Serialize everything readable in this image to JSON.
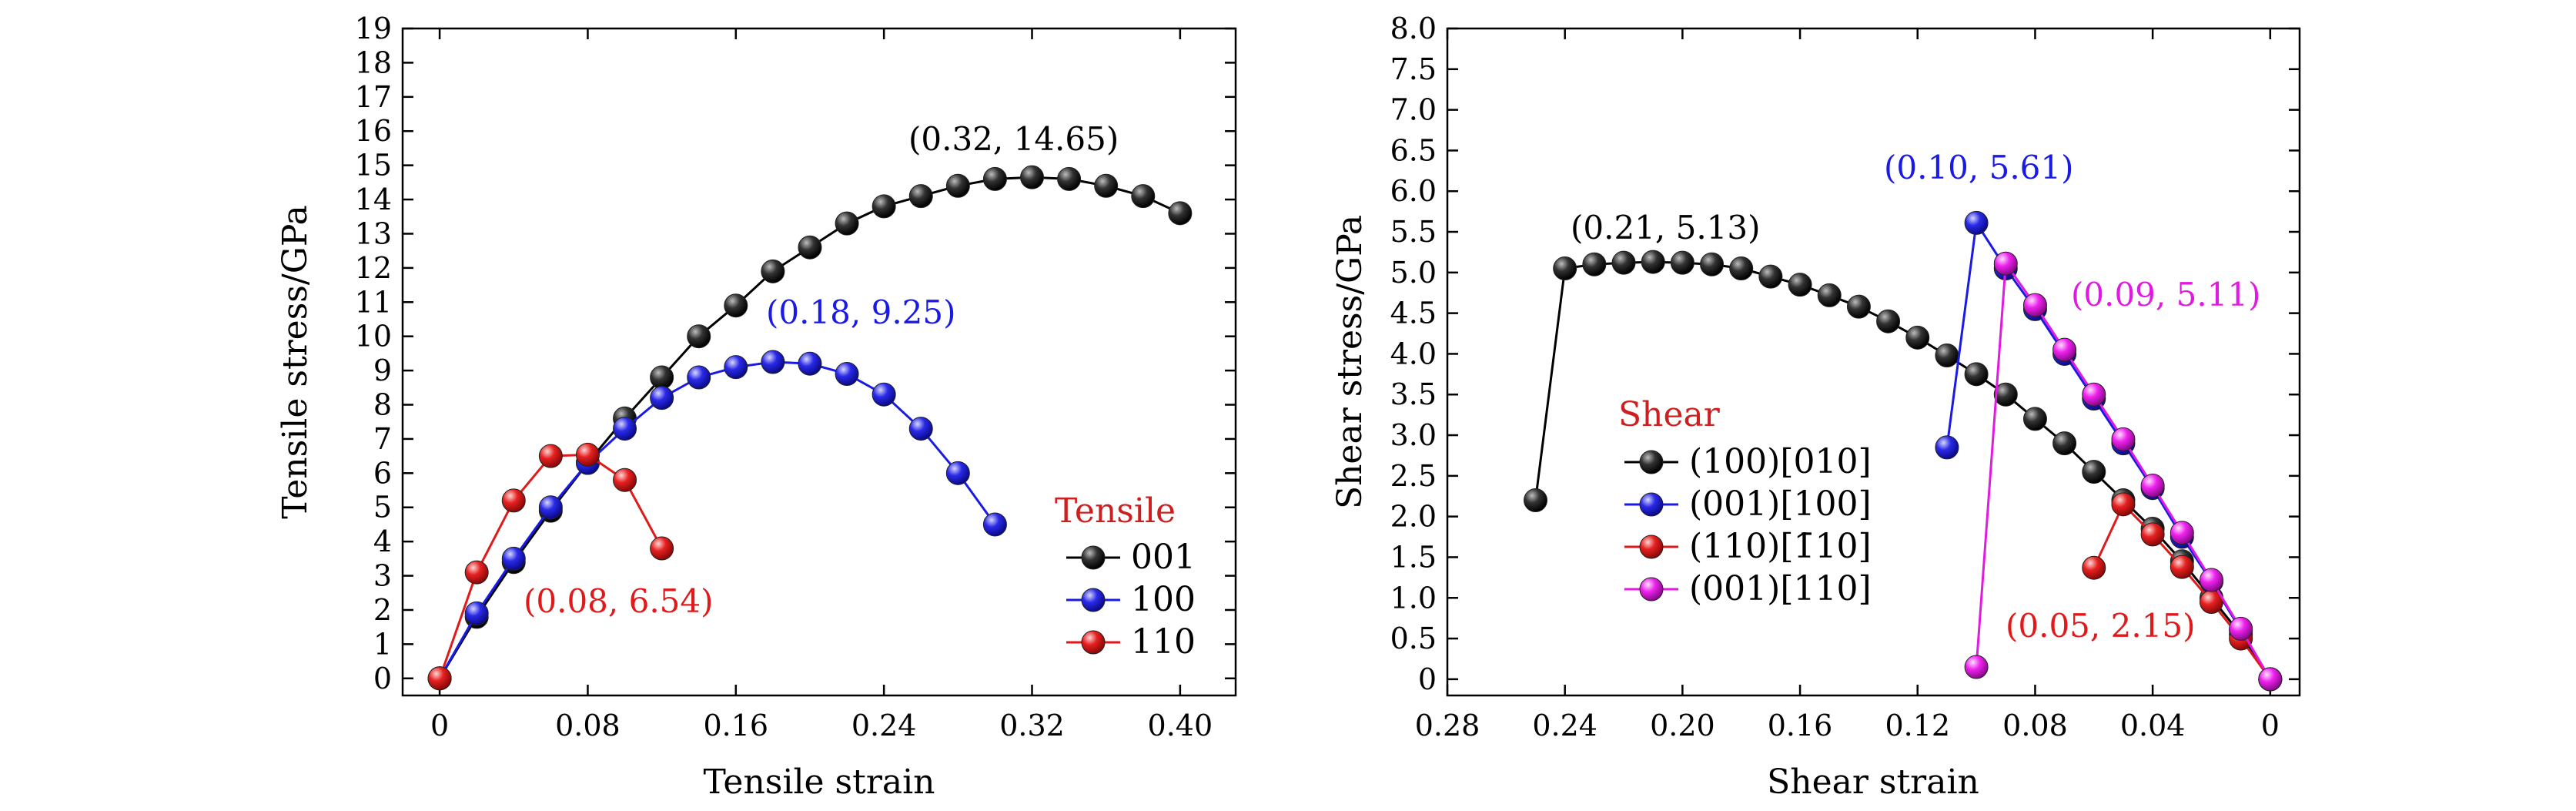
{
  "chart_data": [
    {
      "type": "scatter",
      "style": "line-with-ball-markers",
      "xlabel": "Tensile strain",
      "ylabel": "Tensile stress/GPa",
      "xlim": [
        -0.02,
        0.43
      ],
      "ylim": [
        -0.5,
        19
      ],
      "xticks": [
        0,
        0.08,
        0.16,
        0.24,
        0.32,
        0.4
      ],
      "xtick_labels": [
        "0",
        "0.08",
        "0.16",
        "0.24",
        "0.32",
        "0.40"
      ],
      "yticks": [
        0,
        1,
        2,
        3,
        4,
        5,
        6,
        7,
        8,
        9,
        10,
        11,
        12,
        13,
        14,
        15,
        16,
        17,
        18,
        19
      ],
      "ytick_labels": [
        "0",
        "1",
        "2",
        "3",
        "4",
        "5",
        "6",
        "7",
        "8",
        "9",
        "10",
        "11",
        "12",
        "13",
        "14",
        "15",
        "16",
        "17",
        "18",
        "19"
      ],
      "grid": false,
      "legend_title": "Tensile",
      "legend_title_color": "#cc2020",
      "legend_position": "lower-right",
      "series": [
        {
          "name": "001",
          "color": "#000000",
          "x": [
            0,
            0.02,
            0.04,
            0.06,
            0.08,
            0.1,
            0.12,
            0.14,
            0.16,
            0.18,
            0.2,
            0.22,
            0.24,
            0.26,
            0.28,
            0.3,
            0.32,
            0.34,
            0.36,
            0.38,
            0.4
          ],
          "y": [
            0,
            1.8,
            3.4,
            4.9,
            6.3,
            7.6,
            8.8,
            10.0,
            10.9,
            11.9,
            12.6,
            13.3,
            13.8,
            14.1,
            14.4,
            14.6,
            14.65,
            14.6,
            14.4,
            14.1,
            13.6
          ]
        },
        {
          "name": "100",
          "color": "#1a1ae6",
          "x": [
            0,
            0.02,
            0.04,
            0.06,
            0.08,
            0.1,
            0.12,
            0.14,
            0.16,
            0.18,
            0.2,
            0.22,
            0.24,
            0.26,
            0.28,
            0.3
          ],
          "y": [
            0,
            1.9,
            3.5,
            5.0,
            6.3,
            7.3,
            8.2,
            8.8,
            9.1,
            9.25,
            9.2,
            8.9,
            8.3,
            7.3,
            6.0,
            4.5
          ]
        },
        {
          "name": "110",
          "color": "#e01a1a",
          "x": [
            0,
            0.02,
            0.04,
            0.06,
            0.08,
            0.1,
            0.12
          ],
          "y": [
            0,
            3.1,
            5.2,
            6.5,
            6.54,
            5.8,
            3.8
          ]
        }
      ],
      "annotations": [
        {
          "text": "(0.32, 14.65)",
          "color": "#000000",
          "x": 0.32,
          "y": 14.65
        },
        {
          "text": "(0.18, 9.25)",
          "color": "#1a1ae6",
          "x": 0.18,
          "y": 9.25
        },
        {
          "text": "(0.08, 6.54)",
          "color": "#e01a1a",
          "x": 0.08,
          "y": 6.54
        }
      ]
    },
    {
      "type": "scatter",
      "style": "line-with-ball-markers",
      "xlabel": "Shear strain",
      "ylabel": "Shear stress/GPa",
      "x_reversed": true,
      "xlim": [
        0.28,
        -0.01
      ],
      "ylim": [
        -0.2,
        8.0
      ],
      "xticks": [
        0.28,
        0.24,
        0.2,
        0.16,
        0.12,
        0.08,
        0.04,
        0
      ],
      "xtick_labels": [
        "0.28",
        "0.24",
        "0.20",
        "0.16",
        "0.12",
        "0.08",
        "0.04",
        "0"
      ],
      "yticks": [
        0,
        0.5,
        1.0,
        1.5,
        2.0,
        2.5,
        3.0,
        3.5,
        4.0,
        4.5,
        5.0,
        5.5,
        6.0,
        6.5,
        7.0,
        7.5,
        8.0
      ],
      "ytick_labels": [
        "0",
        "0.5",
        "1.0",
        "1.5",
        "2.0",
        "2.5",
        "3.0",
        "3.5",
        "4.0",
        "4.5",
        "5.0",
        "5.5",
        "6.0",
        "6.5",
        "7.0",
        "7.5",
        "8.0"
      ],
      "grid": false,
      "legend_title": "Shear",
      "legend_title_color": "#cc2020",
      "legend_position": "lower-left",
      "series": [
        {
          "name": "(100)[010]",
          "color": "#000000",
          "x": [
            0.25,
            0.24,
            0.23,
            0.22,
            0.21,
            0.2,
            0.19,
            0.18,
            0.17,
            0.16,
            0.15,
            0.14,
            0.13,
            0.12,
            0.11,
            0.1,
            0.09,
            0.08,
            0.07,
            0.06,
            0.05,
            0.04,
            0.03,
            0.02,
            0.01,
            0
          ],
          "y": [
            2.2,
            5.05,
            5.1,
            5.12,
            5.13,
            5.12,
            5.1,
            5.05,
            4.95,
            4.85,
            4.72,
            4.58,
            4.4,
            4.2,
            3.98,
            3.75,
            3.5,
            3.2,
            2.9,
            2.55,
            2.2,
            1.85,
            1.45,
            1.0,
            0.55,
            0
          ]
        },
        {
          "name": "(001)[100]",
          "color": "#1a1ae6",
          "x": [
            0.11,
            0.1,
            0.09,
            0.08,
            0.07,
            0.06,
            0.05,
            0.04,
            0.03,
            0.02,
            0.01,
            0
          ],
          "y": [
            2.85,
            5.61,
            5.05,
            4.55,
            4.0,
            3.45,
            2.9,
            2.35,
            1.75,
            1.2,
            0.6,
            0
          ]
        },
        {
          "name": "(110)[1̄10]",
          "color": "#e01a1a",
          "x": [
            0.06,
            0.05,
            0.04,
            0.03,
            0.02,
            0.01,
            0
          ],
          "y": [
            1.37,
            2.15,
            1.78,
            1.38,
            0.95,
            0.5,
            0
          ]
        },
        {
          "name": "(001)[110]",
          "color": "#e01ae0",
          "x": [
            0.1,
            0.09,
            0.08,
            0.07,
            0.06,
            0.05,
            0.04,
            0.03,
            0.02,
            0.01,
            0
          ],
          "y": [
            0.15,
            5.11,
            4.6,
            4.05,
            3.5,
            2.95,
            2.38,
            1.8,
            1.22,
            0.62,
            0
          ]
        }
      ],
      "annotations": [
        {
          "text": "(0.21, 5.13)",
          "color": "#000000",
          "x": 0.21,
          "y": 5.13
        },
        {
          "text": "(0.10, 5.61)",
          "color": "#1a1ae6",
          "x": 0.1,
          "y": 5.61
        },
        {
          "text": "(0.09, 5.11)",
          "color": "#e01ae0",
          "x": 0.09,
          "y": 5.11
        },
        {
          "text": "(0.05, 2.15)",
          "color": "#e01a1a",
          "x": 0.05,
          "y": 2.15
        }
      ]
    }
  ]
}
